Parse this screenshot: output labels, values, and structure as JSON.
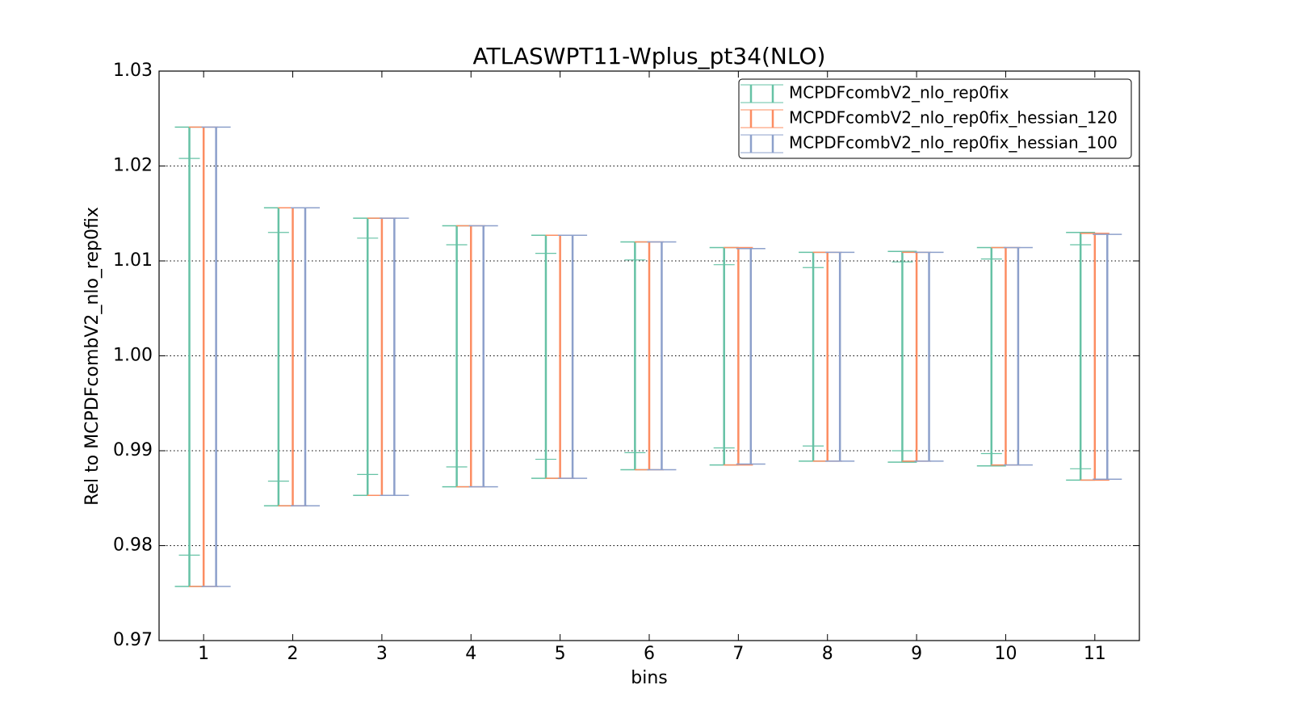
{
  "chart_data": {
    "type": "errorbar",
    "title": "ATLASWPT11-Wplus_pt34(NLO)",
    "x_label": "bins",
    "y_label": "Rel to MCPDFcombV2_nlo_rep0fix",
    "x": [
      1,
      2,
      3,
      4,
      5,
      6,
      7,
      8,
      9,
      10,
      11
    ],
    "xlim": [
      0.5,
      11.5
    ],
    "xticks": [
      1,
      2,
      3,
      4,
      5,
      6,
      7,
      8,
      9,
      10,
      11
    ],
    "ylim": [
      0.97,
      1.03
    ],
    "yticks": [
      0.97,
      0.98,
      0.99,
      {
        "value": 1.0,
        "label": "1.00"
      },
      1.01,
      1.02,
      1.03
    ],
    "grid": true,
    "legend": "upper right",
    "series": [
      {
        "name": "MCPDFcombV2_nlo_rep0fix",
        "color": "#66c2a5",
        "high": [
          1.0241,
          1.0156,
          1.0145,
          1.0137,
          1.0127,
          1.012,
          1.0114,
          1.0109,
          1.011,
          1.0114,
          1.013
        ],
        "low": [
          0.9757,
          0.9842,
          0.9853,
          0.9862,
          0.9871,
          0.988,
          0.9885,
          0.9889,
          0.9888,
          0.9884,
          0.9869
        ],
        "inner_high": [
          1.0208,
          1.013,
          1.0124,
          1.0117,
          1.0108,
          1.0101,
          1.0096,
          1.0093,
          1.0099,
          1.0102,
          1.0117
        ],
        "inner_low": [
          0.979,
          0.9868,
          0.9875,
          0.9883,
          0.9891,
          0.9898,
          0.9903,
          0.9905,
          0.99,
          0.9897,
          0.9881
        ]
      },
      {
        "name": "MCPDFcombV2_nlo_rep0fix_hessian_120",
        "color": "#fc8d62",
        "high": [
          1.0241,
          1.0156,
          1.0145,
          1.0137,
          1.0127,
          1.012,
          1.0114,
          1.0109,
          1.0109,
          1.0114,
          1.0129
        ],
        "low": [
          0.9757,
          0.9842,
          0.9853,
          0.9862,
          0.9871,
          0.988,
          0.9885,
          0.9889,
          0.9889,
          0.9885,
          0.9869
        ]
      },
      {
        "name": "MCPDFcombV2_nlo_rep0fix_hessian_100",
        "color": "#8da0cb",
        "high": [
          1.0241,
          1.0156,
          1.0145,
          1.0137,
          1.0127,
          1.012,
          1.0113,
          1.0109,
          1.0109,
          1.0114,
          1.0128
        ],
        "low": [
          0.9757,
          0.9842,
          0.9853,
          0.9862,
          0.9871,
          0.988,
          0.9886,
          0.9889,
          0.9889,
          0.9885,
          0.987
        ]
      }
    ]
  }
}
